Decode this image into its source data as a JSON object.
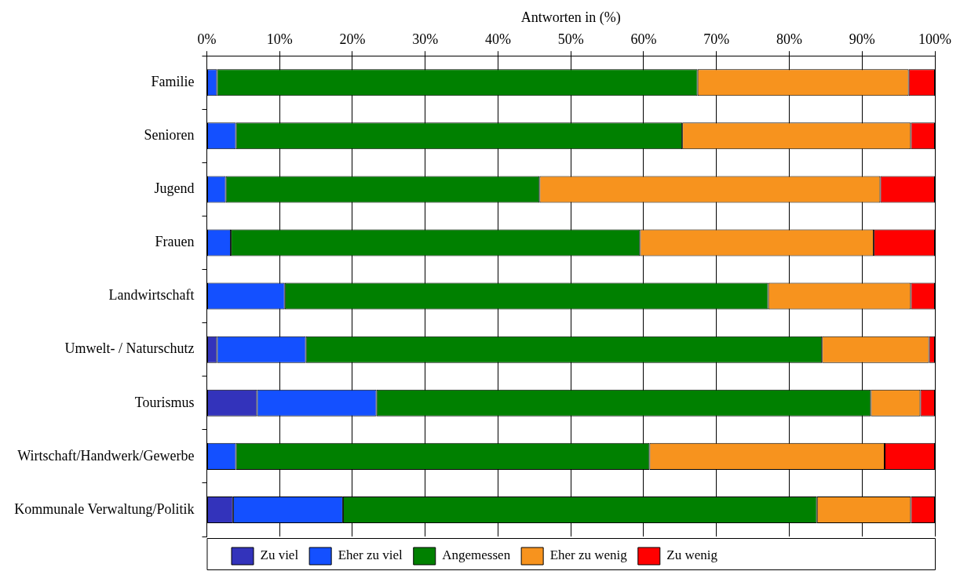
{
  "chart_data": {
    "type": "bar",
    "orientation": "horizontal",
    "stacked": true,
    "xlabel": "Antworten in (%)",
    "categories": [
      "Familie",
      "Senioren",
      "Jugend",
      "Frauen",
      "Landwirtschaft",
      "Umwelt- / Naturschutz",
      "Tourismus",
      "Wirtschaft/Handwerk/Gewerbe",
      "Kommunale Verwaltung/Politik"
    ],
    "series": [
      {
        "name": "Zu viel",
        "color": "#3333bb",
        "values": [
          0,
          0,
          0,
          0,
          0,
          1.4,
          6.9,
          0,
          3.6
        ]
      },
      {
        "name": "Eher zu viel",
        "color": "#1450ff",
        "values": [
          1.4,
          4.0,
          2.6,
          3.3,
          10.7,
          12.2,
          16.4,
          4.0,
          15.1
        ]
      },
      {
        "name": "Angemessen",
        "color": "#008000",
        "values": [
          66.0,
          61.3,
          43.1,
          56.2,
          66.4,
          70.9,
          67.9,
          56.8,
          65.1
        ]
      },
      {
        "name": "Eher zu wenig",
        "color": "#f7931e",
        "values": [
          29.0,
          31.4,
          46.8,
          32.1,
          19.6,
          14.7,
          6.8,
          32.3,
          12.9
        ]
      },
      {
        "name": "Zu wenig",
        "color": "#ff0000",
        "values": [
          3.6,
          3.3,
          7.5,
          8.4,
          3.3,
          0.8,
          2.0,
          6.9,
          3.3
        ]
      }
    ],
    "xlim": [
      0,
      100
    ],
    "xticks": [
      {
        "value": 0,
        "label": "0%"
      },
      {
        "value": 10,
        "label": "10%"
      },
      {
        "value": 20,
        "label": "20%"
      },
      {
        "value": 30,
        "label": "30%"
      },
      {
        "value": 40,
        "label": "40%"
      },
      {
        "value": 50,
        "label": "50%"
      },
      {
        "value": 60,
        "label": "60%"
      },
      {
        "value": 70,
        "label": "70%"
      },
      {
        "value": 80,
        "label": "80%"
      },
      {
        "value": 90,
        "label": "90%"
      },
      {
        "value": 100,
        "label": "100%"
      }
    ],
    "grid": "x",
    "legend": "bottom"
  }
}
